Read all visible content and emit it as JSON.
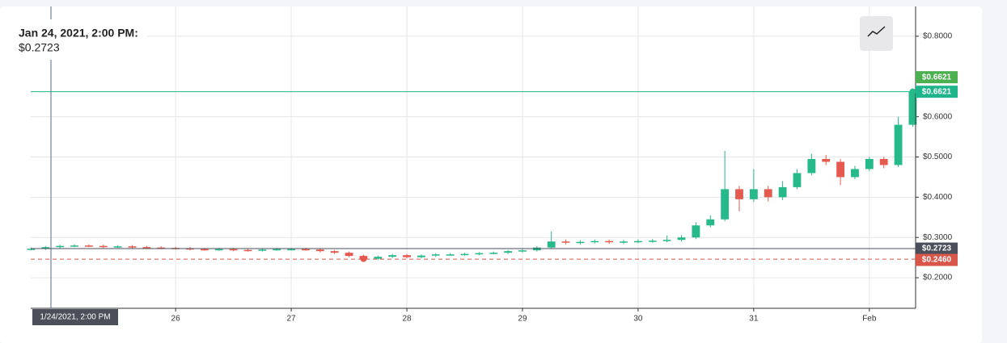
{
  "chart_data": {
    "type": "candlestick",
    "tooltip": {
      "date": "Jan 24, 2021, 2:00 PM:",
      "price": "$0.2723"
    },
    "crosshair_label": "1/24/2021, 2:00 PM",
    "x": [
      24.75,
      24.875,
      25,
      25.125,
      25.25,
      25.375,
      25.5,
      25.625,
      25.75,
      25.875,
      26,
      26.125,
      26.25,
      26.375,
      26.5,
      26.625,
      26.75,
      26.875,
      27,
      27.125,
      27.25,
      27.375,
      27.5,
      27.625,
      27.75,
      27.875,
      28,
      28.125,
      28.25,
      28.375,
      28.5,
      28.625,
      28.75,
      28.875,
      29,
      29.125,
      29.25,
      29.375,
      29.5,
      29.625,
      29.75,
      29.875,
      30,
      30.125,
      30.25,
      30.375,
      30.5,
      30.625,
      30.75,
      30.875,
      31,
      31.125,
      31.25,
      31.375,
      31.5,
      31.625,
      31.75,
      31.875,
      32,
      32.125,
      32.25,
      32.375
    ],
    "open": [
      0.271,
      0.272,
      0.276,
      0.279,
      0.28,
      0.279,
      0.277,
      0.278,
      0.276,
      0.275,
      0.274,
      0.273,
      0.271,
      0.27,
      0.271,
      0.269,
      0.268,
      0.27,
      0.271,
      0.271,
      0.27,
      0.266,
      0.262,
      0.254,
      0.247,
      0.252,
      0.256,
      0.251,
      0.255,
      0.258,
      0.258,
      0.259,
      0.261,
      0.262,
      0.266,
      0.268,
      0.275,
      0.29,
      0.287,
      0.289,
      0.291,
      0.288,
      0.29,
      0.291,
      0.292,
      0.294,
      0.3,
      0.33,
      0.345,
      0.42,
      0.395,
      0.42,
      0.4,
      0.425,
      0.46,
      0.495,
      0.488,
      0.45,
      0.47,
      0.495,
      0.48,
      0.58
    ],
    "high": [
      0.275,
      0.279,
      0.282,
      0.283,
      0.283,
      0.282,
      0.281,
      0.281,
      0.279,
      0.278,
      0.277,
      0.276,
      0.274,
      0.274,
      0.274,
      0.272,
      0.273,
      0.274,
      0.274,
      0.274,
      0.273,
      0.269,
      0.265,
      0.257,
      0.255,
      0.259,
      0.259,
      0.258,
      0.261,
      0.261,
      0.262,
      0.264,
      0.265,
      0.269,
      0.271,
      0.278,
      0.315,
      0.295,
      0.293,
      0.295,
      0.295,
      0.294,
      0.295,
      0.296,
      0.305,
      0.306,
      0.338,
      0.355,
      0.515,
      0.428,
      0.47,
      0.428,
      0.44,
      0.47,
      0.508,
      0.505,
      0.495,
      0.478,
      0.5,
      0.5,
      0.6,
      0.6621
    ],
    "low": [
      0.268,
      0.269,
      0.273,
      0.276,
      0.276,
      0.274,
      0.274,
      0.273,
      0.272,
      0.271,
      0.27,
      0.268,
      0.267,
      0.267,
      0.266,
      0.265,
      0.265,
      0.267,
      0.268,
      0.267,
      0.263,
      0.259,
      0.251,
      0.244,
      0.244,
      0.249,
      0.248,
      0.248,
      0.252,
      0.255,
      0.255,
      0.256,
      0.258,
      0.259,
      0.263,
      0.265,
      0.272,
      0.283,
      0.283,
      0.285,
      0.284,
      0.284,
      0.286,
      0.287,
      0.288,
      0.29,
      0.296,
      0.325,
      0.34,
      0.365,
      0.388,
      0.39,
      0.393,
      0.42,
      0.455,
      0.48,
      0.43,
      0.445,
      0.465,
      0.472,
      0.475,
      0.575
    ],
    "close": [
      0.272,
      0.276,
      0.279,
      0.28,
      0.279,
      0.277,
      0.278,
      0.276,
      0.275,
      0.274,
      0.273,
      0.271,
      0.27,
      0.271,
      0.269,
      0.268,
      0.27,
      0.271,
      0.271,
      0.27,
      0.266,
      0.262,
      0.254,
      0.247,
      0.252,
      0.256,
      0.251,
      0.255,
      0.258,
      0.258,
      0.259,
      0.261,
      0.262,
      0.266,
      0.268,
      0.275,
      0.29,
      0.287,
      0.289,
      0.291,
      0.288,
      0.29,
      0.291,
      0.292,
      0.294,
      0.3,
      0.33,
      0.345,
      0.42,
      0.395,
      0.42,
      0.4,
      0.425,
      0.46,
      0.495,
      0.488,
      0.45,
      0.47,
      0.495,
      0.48,
      0.58,
      0.6621
    ],
    "up_color": "#26b98a",
    "down_color": "#e5594f",
    "xlim": [
      24.747,
      32.4
    ],
    "xticks": [
      26,
      27,
      28,
      29,
      30,
      {
        "value": 32,
        "label": "Feb"
      },
      31
    ],
    "ylim": [
      0.124,
      0.874
    ],
    "yticks": [
      {
        "value": 0.2,
        "label": "$0.2000"
      },
      {
        "value": 0.3,
        "label": "$0.3000"
      },
      {
        "value": 0.4,
        "label": "$0.4000"
      },
      {
        "value": 0.5,
        "label": "$0.5000"
      },
      {
        "value": 0.6,
        "label": "$0.6000"
      },
      {
        "value": 0.8,
        "label": "$0.8000"
      }
    ],
    "grid": true,
    "price_lines": [
      {
        "value": 0.6621,
        "label": "$0.6621",
        "color": "#4caf50",
        "style": "none"
      },
      {
        "value": 0.6621,
        "label": "$0.6621",
        "color": "#1fb48a",
        "style": "solid"
      },
      {
        "value": 0.2723,
        "label": "$0.2723",
        "color": "#4a4f5a",
        "style": "solid"
      },
      {
        "value": 0.246,
        "label": "$0.2460",
        "color": "#d9564a",
        "style": "dashed"
      }
    ]
  }
}
